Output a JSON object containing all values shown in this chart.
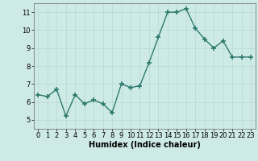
{
  "x": [
    0,
    1,
    2,
    3,
    4,
    5,
    6,
    7,
    8,
    9,
    10,
    11,
    12,
    13,
    14,
    15,
    16,
    17,
    18,
    19,
    20,
    21,
    22,
    23
  ],
  "y": [
    6.4,
    6.3,
    6.7,
    5.2,
    6.4,
    5.9,
    6.1,
    5.9,
    5.4,
    7.0,
    6.8,
    6.9,
    8.2,
    9.6,
    11.0,
    11.0,
    11.2,
    10.1,
    9.5,
    9.0,
    9.4,
    8.5,
    8.5,
    8.5
  ],
  "xlabel": "Humidex (Indice chaleur)",
  "ylim": [
    4.5,
    11.5
  ],
  "xlim": [
    -0.5,
    23.5
  ],
  "yticks": [
    5,
    6,
    7,
    8,
    9,
    10,
    11
  ],
  "xticks": [
    0,
    1,
    2,
    3,
    4,
    5,
    6,
    7,
    8,
    9,
    10,
    11,
    12,
    13,
    14,
    15,
    16,
    17,
    18,
    19,
    20,
    21,
    22,
    23
  ],
  "line_color": "#2d7a6e",
  "bg_color": "#ceeae6",
  "grid_color": "#b8d8d4",
  "marker": "+",
  "marker_size": 4,
  "line_width": 1.0,
  "tick_fontsize": 6.0,
  "xlabel_fontsize": 7.0
}
